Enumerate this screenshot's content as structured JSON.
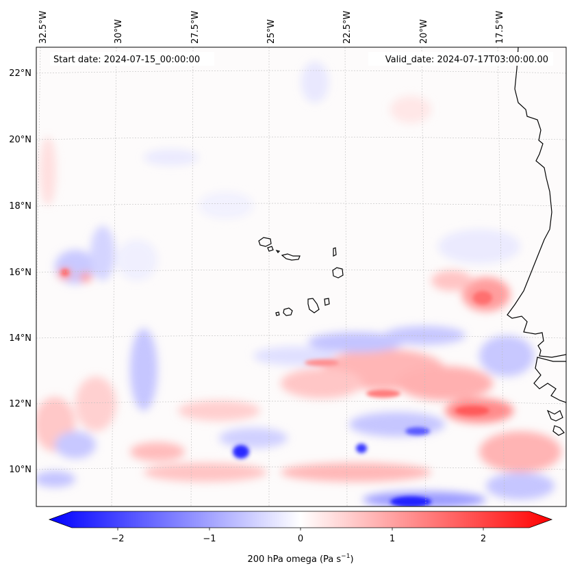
{
  "map": {
    "start_date": "Start date: 2024-07-15_00:00:00",
    "valid_date": "Valid_date: 2024-07-17T03:00:00.00",
    "lon_labels": [
      "32.5°W",
      "30°W",
      "27.5°W",
      "25°W",
      "22.5°W",
      "20°W",
      "17.5°W"
    ],
    "lat_labels": [
      "22°N",
      "20°N",
      "18°N",
      "16°N",
      "14°N",
      "12°N",
      "10°N"
    ]
  },
  "colorbar": {
    "ticks": [
      "−2",
      "−1",
      "0",
      "1",
      "2"
    ],
    "tick_values": [
      -2,
      -1,
      0,
      1,
      2
    ],
    "range": [
      -2.5,
      2.5
    ],
    "label_main": "200 hPa omega (Pa s",
    "label_exp": "−1",
    "label_end": ")",
    "colormap": "bwr",
    "color_low": "#0000ff",
    "color_mid": "#ffffff",
    "color_high": "#ff0000"
  }
}
